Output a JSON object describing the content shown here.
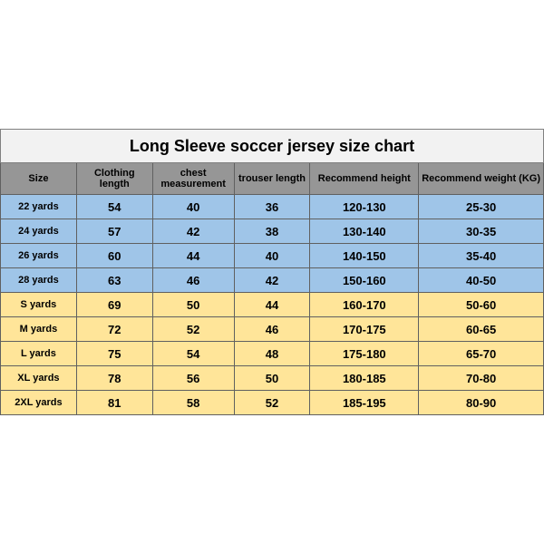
{
  "title": "Long Sleeve soccer jersey size chart",
  "columns": [
    "Size",
    "Clothing length",
    "chest measurement",
    "trouser length",
    "Recommend height",
    "Recommend weight (KG)"
  ],
  "col_widths_pct": [
    14,
    14,
    15,
    14,
    20,
    23
  ],
  "colors": {
    "title_bg": "#f2f2f2",
    "header_bg": "#969696",
    "blue_bg": "#9fc5e8",
    "yellow_bg": "#ffe599",
    "border": "#606060"
  },
  "rows": [
    {
      "color": "blue",
      "cells": [
        "22 yards",
        "54",
        "40",
        "36",
        "120-130",
        "25-30"
      ]
    },
    {
      "color": "blue",
      "cells": [
        "24 yards",
        "57",
        "42",
        "38",
        "130-140",
        "30-35"
      ]
    },
    {
      "color": "blue",
      "cells": [
        "26 yards",
        "60",
        "44",
        "40",
        "140-150",
        "35-40"
      ]
    },
    {
      "color": "blue",
      "cells": [
        "28 yards",
        "63",
        "46",
        "42",
        "150-160",
        "40-50"
      ]
    },
    {
      "color": "yellow",
      "cells": [
        "S yards",
        "69",
        "50",
        "44",
        "160-170",
        "50-60"
      ]
    },
    {
      "color": "yellow",
      "cells": [
        "M yards",
        "72",
        "52",
        "46",
        "170-175",
        "60-65"
      ]
    },
    {
      "color": "yellow",
      "cells": [
        "L yards",
        "75",
        "54",
        "48",
        "175-180",
        "65-70"
      ]
    },
    {
      "color": "yellow",
      "cells": [
        "XL yards",
        "78",
        "56",
        "50",
        "180-185",
        "70-80"
      ]
    },
    {
      "color": "yellow",
      "cells": [
        "2XL yards",
        "81",
        "58",
        "52",
        "185-195",
        "80-90"
      ]
    }
  ]
}
